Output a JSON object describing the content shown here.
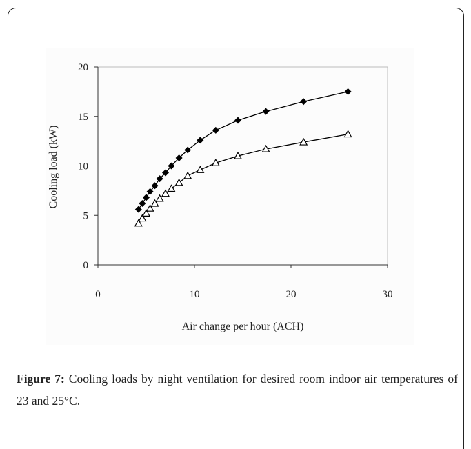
{
  "chart_data": {
    "type": "scatter-line",
    "xlabel": "Air change per hour (ACH)",
    "ylabel": "Cooling load (kW)",
    "xlim": [
      0,
      30
    ],
    "xticks": [
      0,
      10,
      20,
      30
    ],
    "ylim": [
      0,
      20
    ],
    "yticks": [
      0,
      5,
      10,
      15,
      20
    ],
    "series": [
      {
        "color": "#000000",
        "marker": "diamond",
        "x": [
          4.2,
          4.6,
          5.0,
          5.4,
          5.9,
          6.4,
          7.0,
          7.6,
          8.4,
          9.3,
          10.6,
          12.2,
          14.5,
          17.4,
          21.3,
          25.9
        ],
        "values": [
          5.6,
          6.2,
          6.8,
          7.4,
          8.0,
          8.7,
          9.3,
          10.0,
          10.8,
          11.6,
          12.6,
          13.6,
          14.6,
          15.5,
          16.5,
          17.5
        ]
      },
      {
        "color": "#000000",
        "marker": "triangle",
        "x": [
          4.2,
          4.6,
          5.0,
          5.4,
          5.9,
          6.4,
          7.0,
          7.6,
          8.4,
          9.3,
          10.6,
          12.2,
          14.5,
          17.4,
          21.3,
          25.9
        ],
        "values": [
          4.2,
          4.7,
          5.2,
          5.7,
          6.2,
          6.7,
          7.2,
          7.7,
          8.3,
          9.0,
          9.6,
          10.3,
          11.0,
          11.7,
          12.4,
          13.2
        ]
      }
    ]
  },
  "caption": {
    "label": "Figure 7:",
    "text": "Cooling loads by night ventilation for desired room indoor air temperatures of 23 and 25°C."
  }
}
